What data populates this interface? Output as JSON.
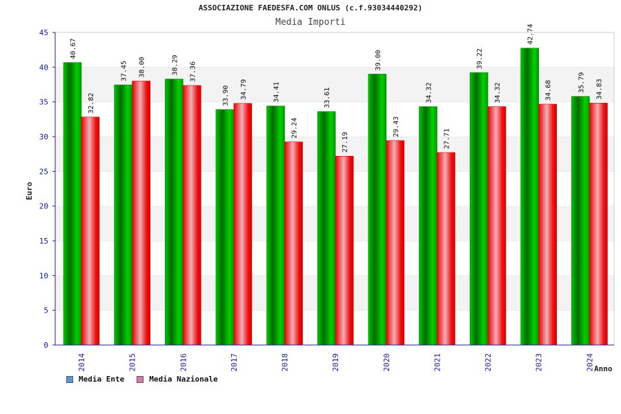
{
  "chart_data": {
    "type": "bar",
    "title": "ASSOCIAZIONE FAEDESFA.COM ONLUS (c.f.93034440292)",
    "subtitle": "Media Importi",
    "xlabel": "Anno",
    "ylabel": "Euro",
    "ylim": [
      0,
      45
    ],
    "yticks": [
      "0",
      "5",
      "10",
      "15",
      "20",
      "25",
      "30",
      "35",
      "40",
      "45"
    ],
    "grid": true,
    "legend_position": "bottom-left",
    "categories": [
      "2014",
      "2015",
      "2016",
      "2017",
      "2018",
      "2019",
      "2020",
      "2021",
      "2022",
      "2023",
      "2024"
    ],
    "series": [
      {
        "name": "Media Ente",
        "color": "#00b000",
        "legend_color": "#5599dd",
        "values": [
          40.67,
          37.45,
          38.29,
          33.9,
          34.41,
          33.61,
          39.0,
          34.32,
          39.22,
          42.74,
          35.79
        ],
        "labels": [
          "40.67",
          "37.45",
          "38.29",
          "33.90",
          "34.41",
          "33.61",
          "39.00",
          "34.32",
          "39.22",
          "42.74",
          "35.79"
        ]
      },
      {
        "name": "Media Nazionale",
        "color": "#ee0000",
        "legend_color": "#dd77aa",
        "values": [
          32.82,
          38.0,
          37.36,
          34.79,
          29.24,
          27.19,
          29.43,
          27.71,
          34.32,
          34.68,
          34.83
        ],
        "labels": [
          "32.82",
          "38.00",
          "37.36",
          "34.79",
          "29.24",
          "27.19",
          "29.43",
          "27.71",
          "34.32",
          "34.68",
          "34.83"
        ]
      }
    ]
  }
}
